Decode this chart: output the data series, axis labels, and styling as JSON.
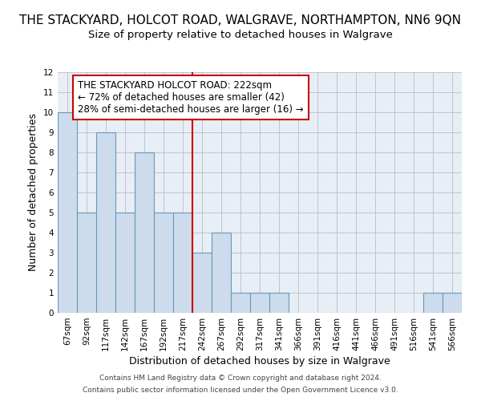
{
  "title": "THE STACKYARD, HOLCOT ROAD, WALGRAVE, NORTHAMPTON, NN6 9QN",
  "subtitle": "Size of property relative to detached houses in Walgrave",
  "xlabel": "Distribution of detached houses by size in Walgrave",
  "ylabel": "Number of detached properties",
  "categories": [
    "67sqm",
    "92sqm",
    "117sqm",
    "142sqm",
    "167sqm",
    "192sqm",
    "217sqm",
    "242sqm",
    "267sqm",
    "292sqm",
    "317sqm",
    "341sqm",
    "366sqm",
    "391sqm",
    "416sqm",
    "441sqm",
    "466sqm",
    "491sqm",
    "516sqm",
    "541sqm",
    "566sqm"
  ],
  "values": [
    10,
    5,
    9,
    5,
    8,
    5,
    5,
    3,
    4,
    1,
    1,
    1,
    0,
    0,
    0,
    0,
    0,
    0,
    0,
    1,
    1
  ],
  "bar_color": "#ccdcec",
  "bar_edge_color": "#6699bb",
  "grid_color": "#bbbbcc",
  "annotation_line1": "THE STACKYARD HOLCOT ROAD: 222sqm",
  "annotation_line2": "← 72% of detached houses are smaller (42)",
  "annotation_line3": "28% of semi-detached houses are larger (16) →",
  "annotation_box_color": "#ffffff",
  "annotation_border_color": "#cc0000",
  "vline_color": "#cc0000",
  "vline_x": 6.5,
  "ylim": [
    0,
    12
  ],
  "yticks": [
    0,
    1,
    2,
    3,
    4,
    5,
    6,
    7,
    8,
    9,
    10,
    11,
    12
  ],
  "footer_line1": "Contains HM Land Registry data © Crown copyright and database right 2024.",
  "footer_line2": "Contains public sector information licensed under the Open Government Licence v3.0.",
  "bg_color": "#e8eef5",
  "title_fontsize": 11,
  "subtitle_fontsize": 9.5,
  "annotation_fontsize": 8.5,
  "axis_label_fontsize": 9,
  "tick_fontsize": 7.5
}
